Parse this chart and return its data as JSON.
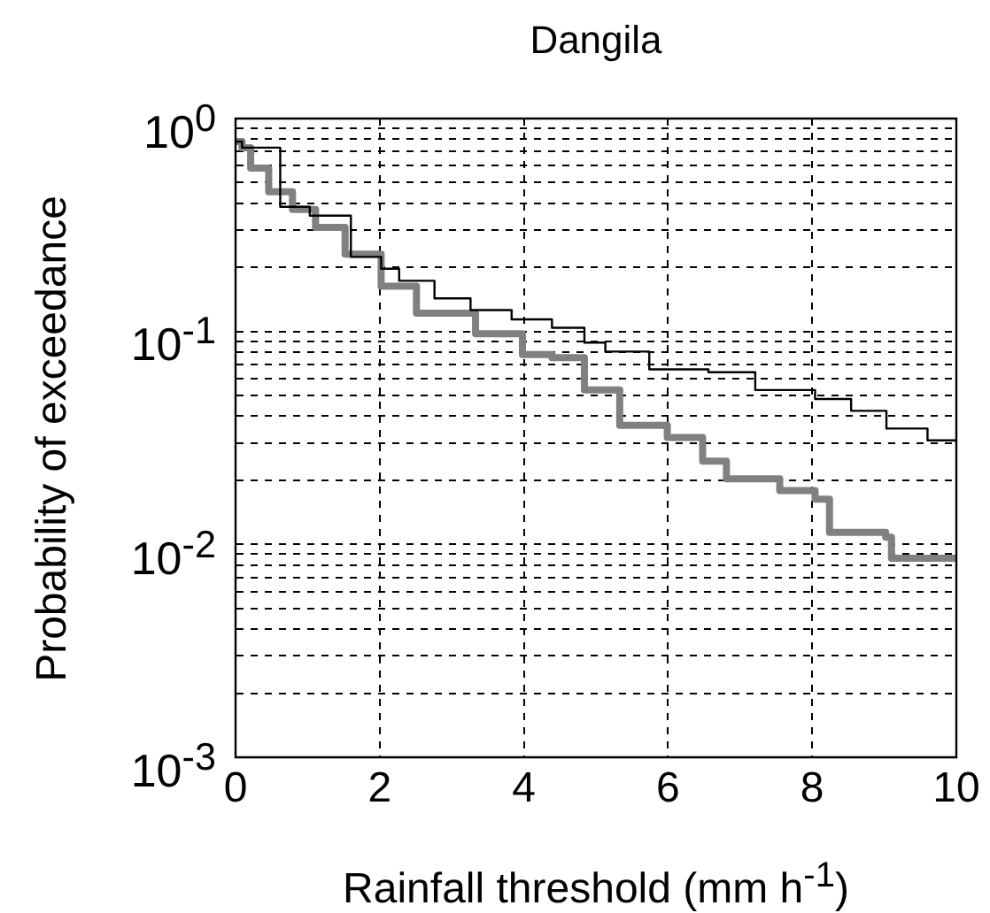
{
  "chart_data": {
    "type": "step",
    "title": "Dangila",
    "xlabel": "Rainfall threshold (mm h$^{-1}$)",
    "ylabel": "Probability of exceedance",
    "log": "y",
    "grid": true,
    "xlim": [
      0,
      10
    ],
    "xticks": [
      0,
      2,
      4,
      6,
      8,
      10
    ],
    "ylim": [
      0.001,
      1
    ],
    "yticks": [
      {
        "value": 0.001,
        "label": "10$^{-3}$"
      },
      {
        "value": 0.002,
        "label": null
      },
      {
        "value": 0.003,
        "label": null
      },
      {
        "value": 0.004,
        "label": null
      },
      {
        "value": 0.005,
        "label": null
      },
      {
        "value": 0.006,
        "label": null
      },
      {
        "value": 0.007,
        "label": null
      },
      {
        "value": 0.008,
        "label": null
      },
      {
        "value": 0.009,
        "label": null
      },
      {
        "value": 0.01,
        "label": "10$^{-2}$"
      },
      {
        "value": 0.02,
        "label": null
      },
      {
        "value": 0.03,
        "label": null
      },
      {
        "value": 0.04,
        "label": null
      },
      {
        "value": 0.05,
        "label": null
      },
      {
        "value": 0.06,
        "label": null
      },
      {
        "value": 0.07,
        "label": null
      },
      {
        "value": 0.08,
        "label": null
      },
      {
        "value": 0.09,
        "label": null
      },
      {
        "value": 0.1,
        "label": "10$^{-1}$"
      },
      {
        "value": 0.2,
        "label": null
      },
      {
        "value": 0.3,
        "label": null
      },
      {
        "value": 0.4,
        "label": null
      },
      {
        "value": 0.5,
        "label": null
      },
      {
        "value": 0.6,
        "label": null
      },
      {
        "value": 0.7,
        "label": null
      },
      {
        "value": 0.8,
        "label": null
      },
      {
        "value": 0.9,
        "label": null
      },
      {
        "value": 1,
        "label": "10$^{0}$"
      }
    ],
    "series": [
      {
        "color": "#000000",
        "x": [
          0,
          0.09,
          0.62,
          1.03,
          1.6,
          2.02,
          2.27,
          2.76,
          3.26,
          3.83,
          4.39,
          4.84,
          5.13,
          5.74,
          6.56,
          7.21,
          8.04,
          8.54,
          9.03,
          9.6,
          10
        ],
        "values": [
          0.78,
          0.73,
          0.385,
          0.35,
          0.224,
          0.197,
          0.173,
          0.143,
          0.126,
          0.114,
          0.104,
          0.0886,
          0.0805,
          0.0664,
          0.0643,
          0.0531,
          0.0482,
          0.0424,
          0.035,
          0.0308,
          0.0299
        ]
      },
      {
        "color": "#808080",
        "x": [
          0,
          0.09,
          0.21,
          0.46,
          0.79,
          1.11,
          1.52,
          2.02,
          2.51,
          3.33,
          3.98,
          4.39,
          4.84,
          5.33,
          5.99,
          6.48,
          6.81,
          7.55,
          8.04,
          8.24,
          9.02,
          9.1,
          10
        ],
        "values": [
          0.78,
          0.73,
          0.585,
          0.453,
          0.374,
          0.308,
          0.231,
          0.163,
          0.122,
          0.0976,
          0.078,
          0.0754,
          0.0531,
          0.0362,
          0.0318,
          0.0246,
          0.0203,
          0.0179,
          0.0163,
          0.0114,
          0.0108,
          0.0086,
          0.0086
        ]
      }
    ]
  }
}
